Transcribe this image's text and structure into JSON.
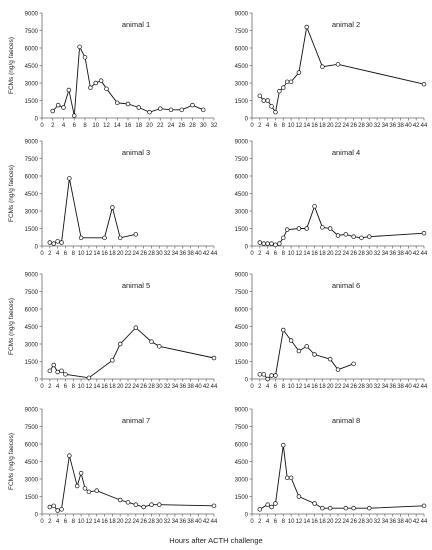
{
  "figure": {
    "x_axis_label": "Hours after ACTH challenge",
    "y_axis_label": "FCMs (ng/g faeces)"
  },
  "chart_data": [
    {
      "type": "line",
      "title": "animal 1",
      "xlim": [
        0,
        32
      ],
      "xticks": [
        0,
        2,
        4,
        6,
        8,
        10,
        12,
        14,
        16,
        18,
        20,
        22,
        24,
        26,
        28,
        30,
        32
      ],
      "ylim": [
        0,
        9000
      ],
      "yticks": [
        0,
        1500,
        3000,
        4500,
        6000,
        7500,
        9000
      ],
      "ylabel": "FCMs (ng/g faeces)",
      "x": [
        2,
        3,
        4,
        5,
        6,
        7,
        8,
        9,
        10,
        11,
        12,
        14,
        16,
        18,
        20,
        22,
        24,
        26,
        28,
        30
      ],
      "y": [
        600,
        1100,
        900,
        2400,
        200,
        6100,
        5200,
        2600,
        3000,
        3200,
        2500,
        1300,
        1200,
        900,
        500,
        800,
        700,
        700,
        1100,
        700
      ]
    },
    {
      "type": "line",
      "title": "animal 2",
      "xlim": [
        0,
        44
      ],
      "xticks": [
        0,
        2,
        4,
        6,
        8,
        10,
        12,
        14,
        16,
        18,
        20,
        22,
        24,
        26,
        28,
        30,
        32,
        34,
        36,
        38,
        40,
        42,
        44
      ],
      "ylim": [
        0,
        9000
      ],
      "yticks": [
        0,
        1500,
        3000,
        4500,
        6000,
        7500,
        9000
      ],
      "ylabel": "",
      "x": [
        2,
        3,
        4,
        5,
        6,
        7,
        8,
        9,
        10,
        12,
        14,
        18,
        22,
        44
      ],
      "y": [
        1900,
        1500,
        1500,
        1000,
        500,
        2300,
        2600,
        3100,
        3100,
        3900,
        7800,
        4400,
        4600,
        2900
      ]
    },
    {
      "type": "line",
      "title": "animal 3",
      "xlim": [
        0,
        44
      ],
      "xticks": [
        0,
        2,
        4,
        6,
        8,
        10,
        12,
        14,
        16,
        18,
        20,
        22,
        24,
        26,
        28,
        30,
        32,
        34,
        36,
        38,
        40,
        42,
        44
      ],
      "ylim": [
        0,
        9000
      ],
      "yticks": [
        0,
        1500,
        3000,
        4500,
        6000,
        7500,
        9000
      ],
      "ylabel": "FCMs (ng/g faeces)",
      "x": [
        2,
        3,
        4,
        5,
        7,
        10,
        16,
        18,
        20,
        24
      ],
      "y": [
        300,
        200,
        400,
        300,
        5800,
        700,
        700,
        3300,
        700,
        1000
      ]
    },
    {
      "type": "line",
      "title": "animal 4",
      "xlim": [
        0,
        44
      ],
      "xticks": [
        0,
        2,
        4,
        6,
        8,
        10,
        12,
        14,
        16,
        18,
        20,
        22,
        24,
        26,
        28,
        30,
        32,
        34,
        36,
        38,
        40,
        42,
        44
      ],
      "ylim": [
        0,
        9000
      ],
      "yticks": [
        0,
        1500,
        3000,
        4500,
        6000,
        7500,
        9000
      ],
      "ylabel": "",
      "x": [
        2,
        3,
        4,
        5,
        6,
        7,
        8,
        9,
        12,
        14,
        16,
        18,
        20,
        22,
        24,
        26,
        28,
        30,
        44
      ],
      "y": [
        300,
        200,
        200,
        200,
        100,
        200,
        700,
        1400,
        1500,
        1500,
        3400,
        1600,
        1500,
        900,
        1000,
        800,
        700,
        800,
        1100
      ]
    },
    {
      "type": "line",
      "title": "animal 5",
      "xlim": [
        0,
        44
      ],
      "xticks": [
        0,
        2,
        4,
        6,
        8,
        10,
        12,
        14,
        16,
        18,
        20,
        22,
        24,
        26,
        28,
        30,
        32,
        34,
        36,
        38,
        40,
        42,
        44
      ],
      "ylim": [
        0,
        9000
      ],
      "yticks": [
        0,
        1500,
        3000,
        4500,
        6000,
        7500,
        9000
      ],
      "ylabel": "FCMs (ng/g faeces)",
      "x": [
        2,
        3,
        4,
        5,
        6,
        12,
        18,
        20,
        24,
        28,
        30,
        44
      ],
      "y": [
        700,
        1200,
        600,
        700,
        400,
        100,
        1600,
        3000,
        4400,
        3200,
        2800,
        1800
      ]
    },
    {
      "type": "line",
      "title": "animal 6",
      "xlim": [
        0,
        44
      ],
      "xticks": [
        0,
        2,
        4,
        6,
        8,
        10,
        12,
        14,
        16,
        18,
        20,
        22,
        24,
        26,
        28,
        30,
        32,
        34,
        36,
        38,
        40,
        42,
        44
      ],
      "ylim": [
        0,
        9000
      ],
      "yticks": [
        0,
        1500,
        3000,
        4500,
        6000,
        7500,
        9000
      ],
      "ylabel": "",
      "x": [
        2,
        3,
        4,
        5,
        6,
        8,
        10,
        12,
        14,
        16,
        20,
        22,
        26
      ],
      "y": [
        400,
        400,
        0,
        300,
        300,
        4200,
        3300,
        2400,
        2800,
        2100,
        1700,
        800,
        1300
      ]
    },
    {
      "type": "line",
      "title": "animal 7",
      "xlim": [
        0,
        44
      ],
      "xticks": [
        0,
        2,
        4,
        6,
        8,
        10,
        12,
        14,
        16,
        18,
        20,
        22,
        24,
        26,
        28,
        30,
        32,
        34,
        36,
        38,
        40,
        42,
        44
      ],
      "ylim": [
        0,
        9000
      ],
      "yticks": [
        0,
        1500,
        3000,
        4500,
        6000,
        7500,
        9000
      ],
      "ylabel": "FCMs (ng/g faeces)",
      "x": [
        2,
        3,
        4,
        5,
        7,
        9,
        10,
        11,
        12,
        14,
        20,
        22,
        24,
        26,
        28,
        30,
        44
      ],
      "y": [
        600,
        700,
        300,
        400,
        5000,
        2400,
        3500,
        2200,
        1900,
        2000,
        1200,
        1000,
        800,
        600,
        800,
        800,
        700
      ]
    },
    {
      "type": "line",
      "title": "animal 8",
      "xlim": [
        0,
        44
      ],
      "xticks": [
        0,
        2,
        4,
        6,
        8,
        10,
        12,
        14,
        16,
        18,
        20,
        22,
        24,
        26,
        28,
        30,
        32,
        34,
        36,
        38,
        40,
        42,
        44
      ],
      "ylim": [
        0,
        9000
      ],
      "yticks": [
        0,
        1500,
        3000,
        4500,
        6000,
        7500,
        9000
      ],
      "ylabel": "",
      "x": [
        2,
        4,
        5,
        6,
        8,
        9,
        10,
        12,
        16,
        18,
        20,
        24,
        26,
        30,
        44
      ],
      "y": [
        400,
        800,
        600,
        900,
        5900,
        3100,
        3100,
        1500,
        900,
        500,
        500,
        500,
        500,
        500,
        700
      ]
    }
  ]
}
